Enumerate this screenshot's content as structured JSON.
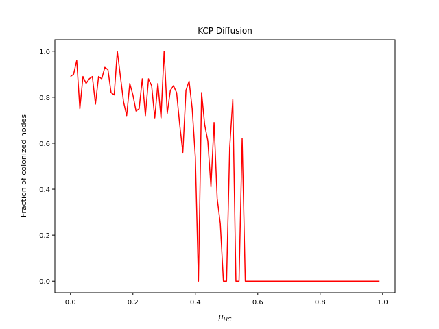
{
  "chart_data": {
    "type": "line",
    "title": "KCP Diffusion",
    "xlabel": "μ",
    "xlabel_sub": "HC",
    "ylabel": "Fraction of colonized nodes",
    "xlim": [
      -0.05,
      1.04
    ],
    "ylim": [
      -0.05,
      1.05
    ],
    "xticks": [
      0.0,
      0.2,
      0.4,
      0.6,
      0.8,
      1.0
    ],
    "xtick_labels": [
      "0.0",
      "0.2",
      "0.4",
      "0.6",
      "0.8",
      "1.0"
    ],
    "yticks": [
      0.0,
      0.2,
      0.4,
      0.6,
      0.8,
      1.0
    ],
    "ytick_labels": [
      "0.0",
      "0.2",
      "0.4",
      "0.6",
      "0.8",
      "1.0"
    ],
    "grid": false,
    "series": [
      {
        "color": "#ff0000",
        "x": [
          0.0,
          0.01,
          0.02,
          0.03,
          0.04,
          0.05,
          0.06,
          0.07,
          0.08,
          0.09,
          0.1,
          0.11,
          0.12,
          0.13,
          0.14,
          0.15,
          0.16,
          0.17,
          0.18,
          0.19,
          0.2,
          0.21,
          0.22,
          0.23,
          0.24,
          0.25,
          0.26,
          0.27,
          0.28,
          0.29,
          0.3,
          0.31,
          0.32,
          0.33,
          0.34,
          0.35,
          0.36,
          0.37,
          0.38,
          0.39,
          0.4,
          0.41,
          0.42,
          0.43,
          0.44,
          0.45,
          0.46,
          0.47,
          0.48,
          0.49,
          0.5,
          0.51,
          0.52,
          0.53,
          0.54,
          0.55,
          0.56,
          0.57,
          0.58,
          0.59,
          0.6,
          0.61,
          0.62,
          0.63,
          0.64,
          0.65,
          0.66,
          0.67,
          0.68,
          0.69,
          0.7,
          0.71,
          0.72,
          0.73,
          0.74,
          0.75,
          0.76,
          0.77,
          0.78,
          0.79,
          0.8,
          0.81,
          0.82,
          0.83,
          0.84,
          0.85,
          0.86,
          0.87,
          0.88,
          0.89,
          0.9,
          0.91,
          0.92,
          0.93,
          0.94,
          0.95,
          0.96,
          0.97,
          0.98,
          0.99
        ],
        "y": [
          0.89,
          0.9,
          0.96,
          0.75,
          0.89,
          0.86,
          0.88,
          0.89,
          0.77,
          0.89,
          0.88,
          0.93,
          0.92,
          0.82,
          0.81,
          1.0,
          0.89,
          0.78,
          0.72,
          0.86,
          0.81,
          0.74,
          0.75,
          0.88,
          0.72,
          0.88,
          0.85,
          0.71,
          0.86,
          0.71,
          1.0,
          0.73,
          0.83,
          0.85,
          0.82,
          0.68,
          0.56,
          0.83,
          0.87,
          0.75,
          0.54,
          0.0,
          0.82,
          0.68,
          0.61,
          0.41,
          0.69,
          0.36,
          0.25,
          0.0,
          0.0,
          0.58,
          0.79,
          0.0,
          0.0,
          0.62,
          0.0,
          0.0,
          0.0,
          0.0,
          0.0,
          0.0,
          0.0,
          0.0,
          0.0,
          0.0,
          0.0,
          0.0,
          0.0,
          0.0,
          0.0,
          0.0,
          0.0,
          0.0,
          0.0,
          0.0,
          0.0,
          0.0,
          0.0,
          0.0,
          0.0,
          0.0,
          0.0,
          0.0,
          0.0,
          0.0,
          0.0,
          0.0,
          0.0,
          0.0,
          0.0,
          0.0,
          0.0,
          0.0,
          0.0,
          0.0,
          0.0,
          0.0,
          0.0,
          0.0
        ]
      }
    ]
  }
}
